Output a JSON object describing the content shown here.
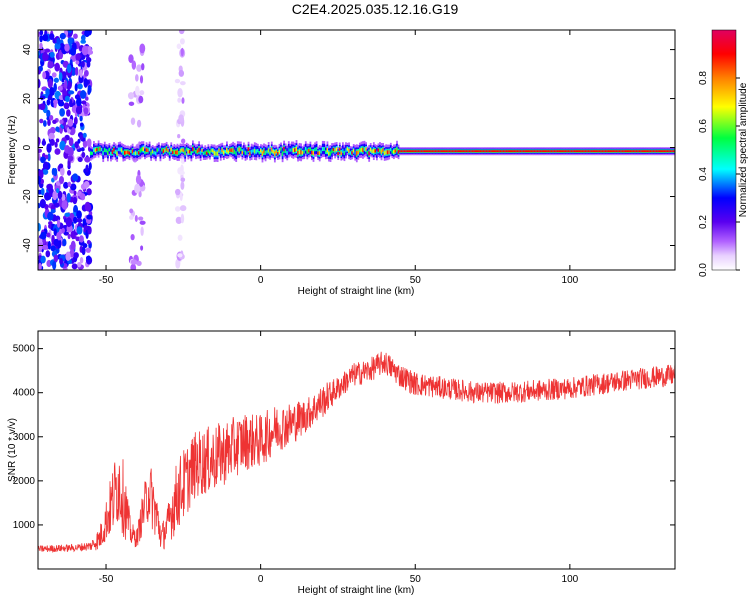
{
  "title": "C2E4.2025.035.12.16.G19",
  "chart_data": [
    {
      "type": "heatmap",
      "xlabel": "Height of straight line (km)",
      "ylabel": "Frequency (Hz)",
      "xlim": [
        -72,
        134
      ],
      "ylim": [
        -50,
        48
      ],
      "x_ticks": [
        -50,
        0,
        50,
        100
      ],
      "y_ticks": [
        -40,
        -20,
        0,
        20,
        40
      ],
      "colorbar": {
        "label": "Normalized spectral amplitude",
        "range": [
          0,
          1
        ],
        "ticks": [
          0.0,
          0.2,
          0.4,
          0.6,
          0.8
        ],
        "colormap": [
          "#ffffff",
          "#e8d0ff",
          "#b060ff",
          "#5a00f0",
          "#0000ff",
          "#00ffff",
          "#00ff40",
          "#ffff00",
          "#ff8000",
          "#ff0000",
          "#e00060"
        ]
      },
      "ridge": {
        "center_frequency_hz": -1.5,
        "x_range": [
          -55,
          134
        ],
        "peak_amplitude": 0.95
      },
      "noise_bands": [
        {
          "x_range": [
            -72,
            -55
          ],
          "amplitude": 0.3
        },
        {
          "x_range": [
            -42,
            -38
          ],
          "amplitude": 0.12
        },
        {
          "x_range": [
            -27,
            -25
          ],
          "amplitude": 0.1
        }
      ]
    },
    {
      "type": "line",
      "xlabel": "Height of straight line (km)",
      "ylabel": "SNR (10 * v/v)",
      "xlim": [
        -72,
        134
      ],
      "ylim": [
        0,
        5400
      ],
      "x_ticks": [
        -50,
        0,
        50,
        100
      ],
      "y_ticks": [
        1000,
        2000,
        3000,
        4000,
        5000
      ],
      "color": "#ee3333",
      "series": [
        {
          "x": [
            -72,
            -65,
            -60,
            -55,
            -52,
            -50,
            -48,
            -46,
            -44,
            -42,
            -40,
            -38,
            -36,
            -34,
            -32,
            -30,
            -28,
            -26,
            -24,
            -22,
            -20,
            -15,
            -10,
            -5,
            0,
            5,
            10,
            15,
            20,
            25,
            30,
            35,
            40,
            45,
            50,
            60,
            70,
            80,
            90,
            100,
            110,
            120,
            134
          ],
          "values": [
            450,
            470,
            480,
            520,
            700,
            1100,
            1500,
            2000,
            1500,
            800,
            700,
            1300,
            1800,
            1300,
            700,
            1000,
            1500,
            1800,
            2000,
            2300,
            2400,
            2500,
            2700,
            2900,
            2900,
            3200,
            3300,
            3500,
            3800,
            4100,
            4400,
            4500,
            4700,
            4400,
            4200,
            4100,
            4000,
            4000,
            4050,
            4100,
            4200,
            4300,
            4400
          ],
          "envelope": [
            150,
            150,
            150,
            200,
            500,
            900,
            1400,
            1800,
            1500,
            500,
            400,
            900,
            1300,
            1200,
            600,
            800,
            1400,
            1500,
            1500,
            1400,
            1400,
            1400,
            1300,
            1200,
            1100,
            1000,
            900,
            700,
            700,
            500,
            500,
            500,
            500,
            500,
            500,
            450,
            450,
            450,
            450,
            450,
            450,
            450,
            450
          ]
        }
      ]
    }
  ]
}
